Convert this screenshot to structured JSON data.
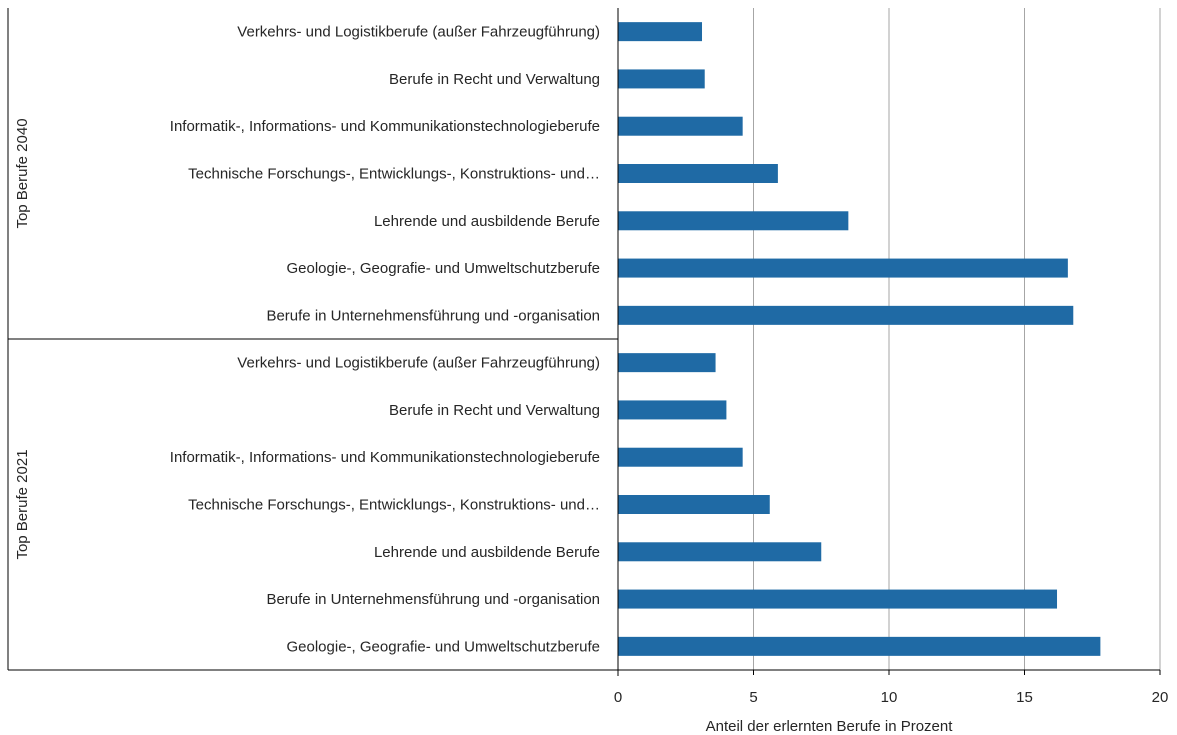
{
  "chart_data": {
    "type": "bar",
    "orientation": "horizontal",
    "xlabel": "Anteil der erlernten  Berufe in Prozent",
    "xlim": [
      0,
      20
    ],
    "xticks": [
      "0",
      "5",
      "10",
      "15",
      "20"
    ],
    "grid": "vertical",
    "bar_color": "#1f6aa5",
    "groups": [
      {
        "name": "Top Berufe 2040",
        "categories": [
          "Verkehrs- und Logistikberufe (außer Fahrzeugführung)",
          "Berufe in Recht und Verwaltung",
          "Informatik-, Informations- und Kommunikationstechnologieberufe",
          "Technische Forschungs-, Entwicklungs-, Konstruktions- und…",
          "Lehrende und ausbildende Berufe",
          "Geologie-, Geografie- und Umweltschutzberufe",
          "Berufe in Unternehmensführung und -organisation"
        ],
        "values": [
          3.1,
          3.2,
          4.6,
          5.9,
          8.5,
          16.6,
          16.8
        ]
      },
      {
        "name": "Top Berufe 2021",
        "categories": [
          "Verkehrs- und Logistikberufe (außer Fahrzeugführung)",
          "Berufe in Recht und Verwaltung",
          "Informatik-, Informations- und Kommunikationstechnologieberufe",
          "Technische Forschungs-, Entwicklungs-, Konstruktions- und…",
          "Lehrende und ausbildende Berufe",
          "Berufe in Unternehmensführung und -organisation",
          "Geologie-, Geografie- und Umweltschutzberufe"
        ],
        "values": [
          3.6,
          4.0,
          4.6,
          5.6,
          7.5,
          16.2,
          17.8
        ]
      }
    ]
  }
}
